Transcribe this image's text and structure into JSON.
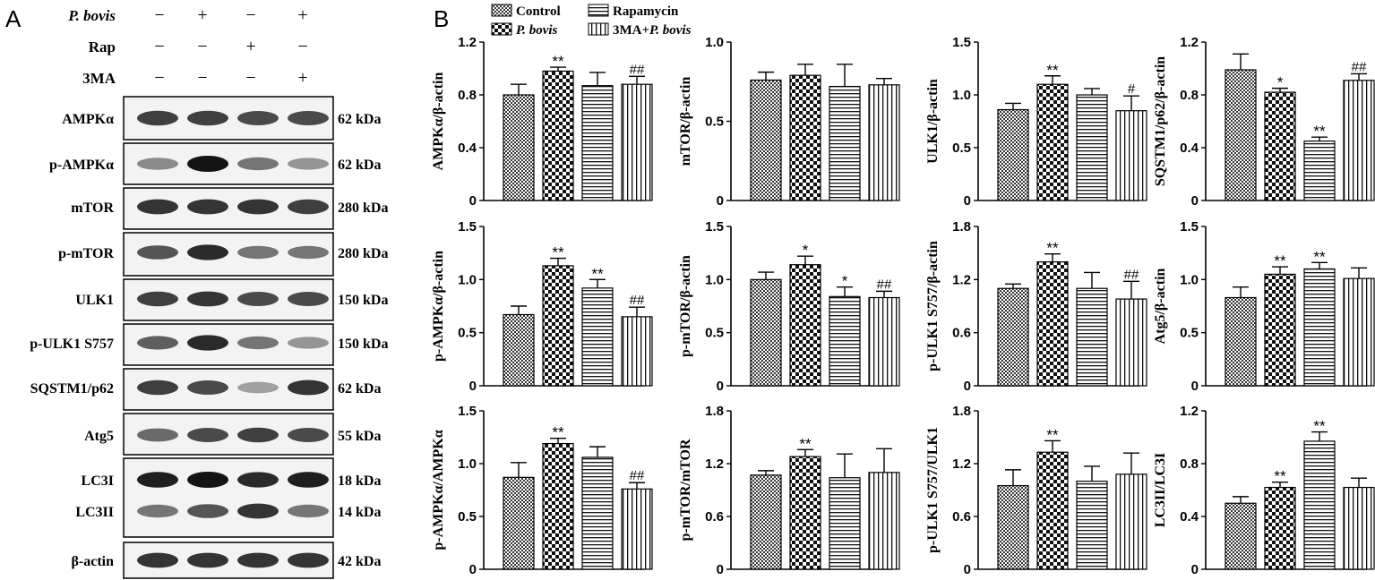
{
  "figure": {
    "panel_a_label": "A",
    "panel_b_label": "B",
    "treatments": [
      {
        "name": "P. bovis",
        "italic": true,
        "signs": [
          "−",
          "+",
          "−",
          "+"
        ]
      },
      {
        "name": "Rap",
        "italic": false,
        "signs": [
          "−",
          "−",
          "+",
          "−"
        ]
      },
      {
        "name": "3MA",
        "italic": false,
        "signs": [
          "−",
          "−",
          "−",
          "+"
        ]
      }
    ],
    "blots": [
      {
        "name": "AMPKα",
        "size": "62 kDa",
        "intensity": [
          0.8,
          0.8,
          0.75,
          0.75
        ]
      },
      {
        "name": "p-AMPKα",
        "size": "62 kDa",
        "intensity": [
          0.45,
          1.0,
          0.55,
          0.4
        ]
      },
      {
        "name": "mTOR",
        "size": "280 kDa",
        "intensity": [
          0.85,
          0.85,
          0.85,
          0.8
        ]
      },
      {
        "name": "p-mTOR",
        "size": "280 kDa",
        "intensity": [
          0.7,
          0.9,
          0.55,
          0.55
        ]
      },
      {
        "name": "ULK1",
        "size": "150 kDa",
        "intensity": [
          0.8,
          0.85,
          0.75,
          0.75
        ]
      },
      {
        "name": "p-ULK1 S757",
        "size": "150 kDa",
        "intensity": [
          0.65,
          0.9,
          0.55,
          0.4
        ]
      },
      {
        "name": "SQSTM1/p62",
        "size": "62 kDa",
        "intensity": [
          0.8,
          0.75,
          0.35,
          0.85
        ]
      },
      {
        "name": "Atg5",
        "size": "55 kDa",
        "intensity": [
          0.6,
          0.75,
          0.8,
          0.75
        ]
      },
      {
        "name": "LC3I",
        "size": "18 kDa",
        "intensity": [
          0.95,
          1.0,
          0.9,
          0.95
        ]
      },
      {
        "name": "LC3II",
        "size": "14 kDa",
        "intensity": [
          0.55,
          0.7,
          0.85,
          0.55
        ]
      },
      {
        "name": "β-actin",
        "size": "42 kDa",
        "intensity": [
          0.85,
          0.85,
          0.85,
          0.85
        ]
      }
    ],
    "legend": [
      {
        "label": "Control",
        "italic": false,
        "pattern": "check"
      },
      {
        "label": "Rapamycin",
        "italic": false,
        "pattern": "hlines"
      },
      {
        "label": "P. bovis",
        "italic": true,
        "pattern": "bigcheck"
      },
      {
        "label": "3MA+",
        "label_suffix": "P. bovis",
        "italic": false,
        "pattern": "vlines"
      }
    ]
  },
  "chart_data": [
    {
      "type": "bar",
      "ylabel": "AMPKα/β-actin",
      "ylim": [
        0,
        1.2
      ],
      "yticks": [
        "0",
        "0.4",
        "0.8",
        "1.2"
      ],
      "ytick_values": [
        0,
        0.4,
        0.8,
        1.2
      ],
      "categories": [
        "Control",
        "P. bovis",
        "Rapamycin",
        "3MA+P. bovis"
      ],
      "values": [
        0.8,
        0.98,
        0.87,
        0.88
      ],
      "errors": [
        0.08,
        0.03,
        0.1,
        0.06
      ],
      "annotations": [
        "",
        "**",
        "",
        "##"
      ]
    },
    {
      "type": "bar",
      "ylabel": "mTOR/β-actin",
      "ylim": [
        0,
        1.0
      ],
      "yticks": [
        "0",
        "0.5",
        "1.0"
      ],
      "ytick_values": [
        0,
        0.5,
        1.0
      ],
      "categories": [
        "Control",
        "P. bovis",
        "Rapamycin",
        "3MA+P. bovis"
      ],
      "values": [
        0.76,
        0.79,
        0.72,
        0.73
      ],
      "errors": [
        0.05,
        0.07,
        0.14,
        0.04
      ],
      "annotations": [
        "",
        "",
        "",
        ""
      ]
    },
    {
      "type": "bar",
      "ylabel": "ULK1/β-actin",
      "ylim": [
        0,
        1.5
      ],
      "yticks": [
        "0",
        "0.5",
        "1.0",
        "1.5"
      ],
      "ytick_values": [
        0,
        0.5,
        1.0,
        1.5
      ],
      "categories": [
        "Control",
        "P. bovis",
        "Rapamycin",
        "3MA+P. bovis"
      ],
      "values": [
        0.86,
        1.1,
        1.0,
        0.85
      ],
      "errors": [
        0.06,
        0.08,
        0.06,
        0.14
      ],
      "annotations": [
        "",
        "**",
        "",
        "#"
      ]
    },
    {
      "type": "bar",
      "ylabel": "SQSTM1/p62/β-actin",
      "ylim": [
        0,
        1.2
      ],
      "yticks": [
        "0",
        "0.4",
        "0.8",
        "1.2"
      ],
      "ytick_values": [
        0,
        0.4,
        0.8,
        1.2
      ],
      "categories": [
        "Control",
        "P. bovis",
        "Rapamycin",
        "3MA+P. bovis"
      ],
      "values": [
        0.99,
        0.82,
        0.45,
        0.91
      ],
      "errors": [
        0.12,
        0.03,
        0.03,
        0.05
      ],
      "annotations": [
        "",
        "*",
        "**",
        "##"
      ]
    },
    {
      "type": "bar",
      "ylabel": "p-AMPKα/β-actin",
      "ylim": [
        0,
        1.5
      ],
      "yticks": [
        "0",
        "0.5",
        "1.0",
        "1.5"
      ],
      "ytick_values": [
        0,
        0.5,
        1.0,
        1.5
      ],
      "categories": [
        "Control",
        "P. bovis",
        "Rapamycin",
        "3MA+P. bovis"
      ],
      "values": [
        0.67,
        1.13,
        0.92,
        0.65
      ],
      "errors": [
        0.08,
        0.07,
        0.08,
        0.09
      ],
      "annotations": [
        "",
        "**",
        "**",
        "##"
      ]
    },
    {
      "type": "bar",
      "ylabel": "p-mTOR/β-actin",
      "ylim": [
        0,
        1.5
      ],
      "yticks": [
        "0",
        "0.5",
        "1.0",
        "1.5"
      ],
      "ytick_values": [
        0,
        0.5,
        1.0,
        1.5
      ],
      "categories": [
        "Control",
        "P. bovis",
        "Rapamycin",
        "3MA+P. bovis"
      ],
      "values": [
        1.0,
        1.14,
        0.84,
        0.83
      ],
      "errors": [
        0.07,
        0.08,
        0.09,
        0.06
      ],
      "annotations": [
        "",
        "*",
        "*",
        "##"
      ]
    },
    {
      "type": "bar",
      "ylabel": "p-ULK1 S757/β-actin",
      "ylim": [
        0,
        1.8
      ],
      "yticks": [
        "0",
        "0.6",
        "1.2",
        "1.8"
      ],
      "ytick_values": [
        0,
        0.6,
        1.2,
        1.8
      ],
      "categories": [
        "Control",
        "P. bovis",
        "Rapamycin",
        "3MA+P. bovis"
      ],
      "values": [
        1.1,
        1.4,
        1.1,
        0.98
      ],
      "errors": [
        0.05,
        0.09,
        0.18,
        0.2
      ],
      "annotations": [
        "",
        "**",
        "",
        "##"
      ]
    },
    {
      "type": "bar",
      "ylabel": "Atg5/β-actin",
      "ylim": [
        0,
        1.5
      ],
      "yticks": [
        "0",
        "0.5",
        "1.0",
        "1.5"
      ],
      "ytick_values": [
        0,
        0.5,
        1.0,
        1.5
      ],
      "categories": [
        "Control",
        "P. bovis",
        "Rapamycin",
        "3MA+P. bovis"
      ],
      "values": [
        0.83,
        1.05,
        1.1,
        1.01
      ],
      "errors": [
        0.1,
        0.07,
        0.06,
        0.1
      ],
      "annotations": [
        "",
        "**",
        "**",
        ""
      ]
    },
    {
      "type": "bar",
      "ylabel": "p-AMPKα/AMPKα",
      "ylim": [
        0,
        1.5
      ],
      "yticks": [
        "0",
        "0.5",
        "1.0",
        "1.5"
      ],
      "ytick_values": [
        0,
        0.5,
        1.0,
        1.5
      ],
      "categories": [
        "Control",
        "P. bovis",
        "Rapamycin",
        "3MA+P. bovis"
      ],
      "values": [
        0.87,
        1.19,
        1.06,
        0.76
      ],
      "errors": [
        0.14,
        0.05,
        0.1,
        0.06
      ],
      "annotations": [
        "",
        "**",
        "",
        "##"
      ]
    },
    {
      "type": "bar",
      "ylabel": "p-mTOR/mTOR",
      "ylim": [
        0,
        1.8
      ],
      "yticks": [
        "0",
        "0.6",
        "1.2",
        "1.8"
      ],
      "ytick_values": [
        0,
        0.6,
        1.2,
        1.8
      ],
      "categories": [
        "Control",
        "P. bovis",
        "Rapamycin",
        "3MA+P. bovis"
      ],
      "values": [
        1.07,
        1.28,
        1.04,
        1.1
      ],
      "errors": [
        0.05,
        0.08,
        0.27,
        0.27
      ],
      "annotations": [
        "",
        "**",
        "",
        ""
      ]
    },
    {
      "type": "bar",
      "ylabel": "p-ULK1 S757/ULK1",
      "ylim": [
        0,
        1.8
      ],
      "yticks": [
        "0",
        "0.6",
        "1.2",
        "1.8"
      ],
      "ytick_values": [
        0,
        0.6,
        1.2,
        1.8
      ],
      "categories": [
        "Control",
        "P. bovis",
        "Rapamycin",
        "3MA+P. bovis"
      ],
      "values": [
        0.95,
        1.33,
        1.0,
        1.08
      ],
      "errors": [
        0.18,
        0.13,
        0.17,
        0.24
      ],
      "annotations": [
        "",
        "**",
        "",
        ""
      ]
    },
    {
      "type": "bar",
      "ylabel": "LC3II/LC3I",
      "ylim": [
        0,
        1.2
      ],
      "yticks": [
        "0",
        "0.4",
        "0.8",
        "1.2"
      ],
      "ytick_values": [
        0,
        0.4,
        0.8,
        1.2
      ],
      "categories": [
        "Control",
        "P. bovis",
        "Rapamycin",
        "3MA+P. bovis"
      ],
      "values": [
        0.5,
        0.62,
        0.97,
        0.62
      ],
      "errors": [
        0.05,
        0.04,
        0.07,
        0.07
      ],
      "annotations": [
        "",
        "**",
        "**",
        ""
      ]
    }
  ]
}
